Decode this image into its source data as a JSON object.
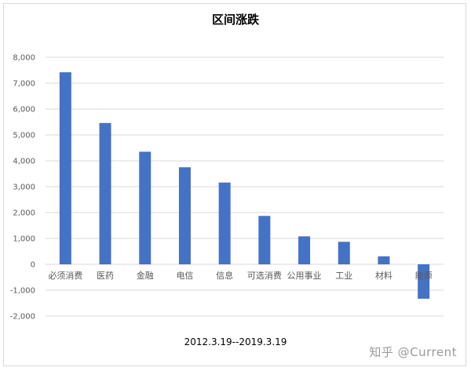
{
  "chart_data": {
    "type": "bar",
    "title": "区间涨跌",
    "subtitle": "2012.3.19--2019.3.19",
    "categories": [
      "必须消费",
      "医药",
      "金融",
      "电信",
      "信息",
      "可选消费",
      "公用事业",
      "工业",
      "材料",
      "能源"
    ],
    "values": [
      7420,
      5460,
      4350,
      3750,
      3160,
      1870,
      1080,
      870,
      310,
      -1330
    ],
    "ylim": [
      -2000,
      8000
    ],
    "yticks": [
      -2000,
      -1000,
      0,
      1000,
      2000,
      3000,
      4000,
      5000,
      6000,
      7000,
      8000
    ],
    "ytick_labels": [
      "-2,000",
      "-1,000",
      "0",
      "1,000",
      "2,000",
      "3,000",
      "4,000",
      "5,000",
      "6,000",
      "7,000",
      "8,000"
    ],
    "grid": true,
    "bar_color": "#4472C4",
    "grid_color": "#d9d9d9"
  },
  "watermark": "知乎 @Current"
}
